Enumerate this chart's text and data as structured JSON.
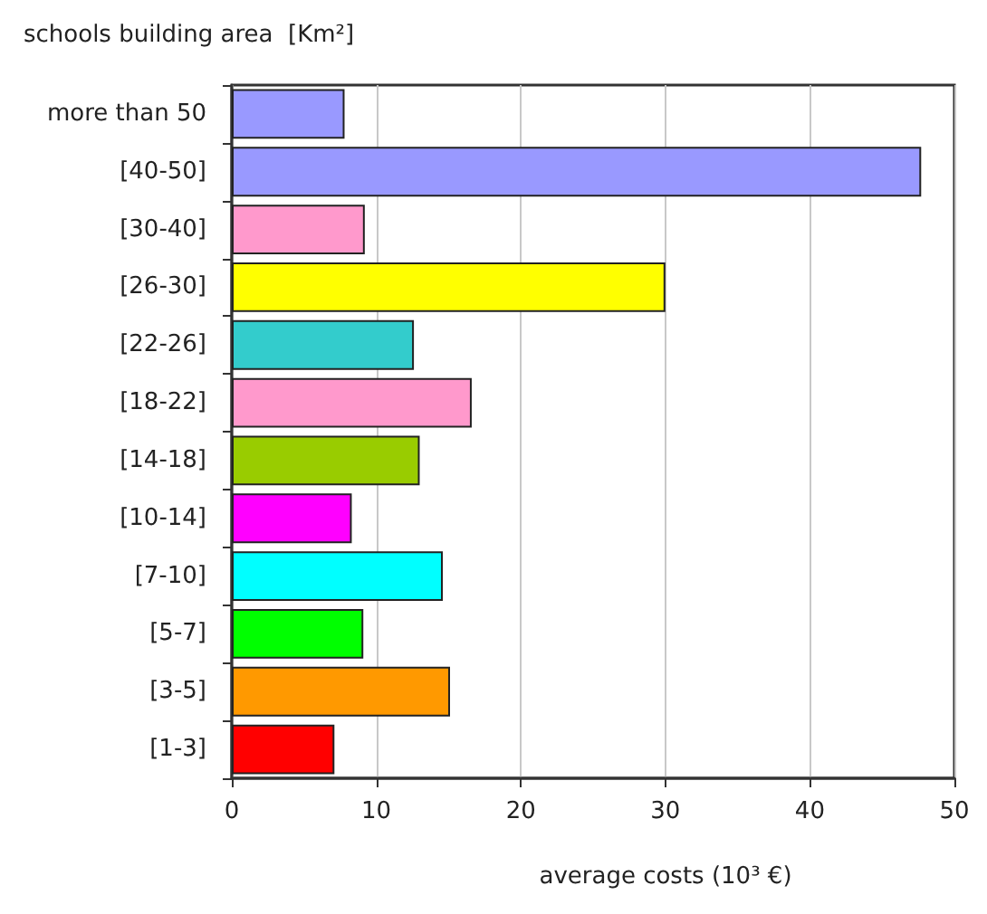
{
  "chart_data": {
    "type": "bar",
    "orientation": "horizontal",
    "ylabel": "schools building area  [Km²]",
    "xlabel": "average costs (10³ €)",
    "categories": [
      "more than 50",
      "[40-50]",
      "[30-40]",
      "[26-30]",
      "[22-26]",
      "[18-22]",
      "[14-18]",
      "[10-14]",
      "[7-10]",
      "[5-7]",
      "[3-5]",
      "[1-3]"
    ],
    "values": [
      7.8,
      47.7,
      9.2,
      30.0,
      12.6,
      16.6,
      13.0,
      8.3,
      14.6,
      9.1,
      15.1,
      7.1
    ],
    "colors": [
      "#9999ff",
      "#9999ff",
      "#ff99cc",
      "#ffff00",
      "#33cccc",
      "#ff99cc",
      "#99cc00",
      "#ff00ff",
      "#00ffff",
      "#00ff00",
      "#ff9900",
      "#ff0000"
    ],
    "xlim": [
      0,
      50
    ],
    "xticks": [
      0,
      10,
      20,
      30,
      40,
      50
    ],
    "grid": "x"
  }
}
